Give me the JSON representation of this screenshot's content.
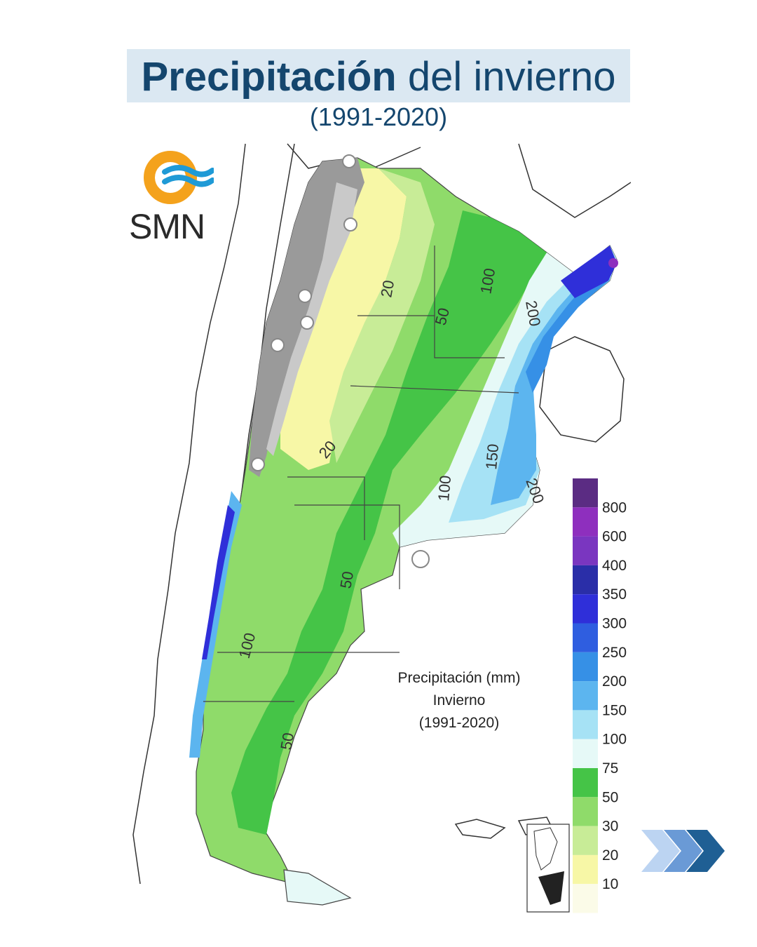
{
  "header": {
    "title_bold": "Precipitación",
    "title_rest": "del invierno",
    "subtitle": "(1991-2020)"
  },
  "logo": {
    "text": "SMN",
    "icon": "smn-logo-icon",
    "colors": {
      "ring": "#f4a21c",
      "waves": "#1f9ad6"
    }
  },
  "map": {
    "legend_title": [
      "Precipitación (mm)",
      "Invierno",
      "(1991-2020)"
    ],
    "contour_labels": [
      "20",
      "20",
      "50",
      "100",
      "200",
      "150",
      "100",
      "200",
      "50",
      "100",
      "50"
    ],
    "scale": [
      {
        "label": "800",
        "color": "#5b2c83"
      },
      {
        "label": "600",
        "color": "#8e2fbe"
      },
      {
        "label": "400",
        "color": "#7a36c0"
      },
      {
        "label": "350",
        "color": "#2a2ea8"
      },
      {
        "label": "300",
        "color": "#2f2fd9"
      },
      {
        "label": "250",
        "color": "#2f5ee0"
      },
      {
        "label": "200",
        "color": "#3690e6"
      },
      {
        "label": "150",
        "color": "#5cb5ef"
      },
      {
        "label": "100",
        "color": "#a6e2f5"
      },
      {
        "label": "75",
        "color": "#e6f9f7"
      },
      {
        "label": "50",
        "color": "#45c447"
      },
      {
        "label": "30",
        "color": "#8fdb6a"
      },
      {
        "label": "20",
        "color": "#c8ec97"
      },
      {
        "label": "10",
        "color": "#f7f7a6"
      },
      {
        "label": "",
        "color": "#fbfbe8"
      }
    ]
  },
  "nav": {
    "next_icon": "chevron-right-icon",
    "colors": [
      "#bcd4f2",
      "#6a9ad6",
      "#1f5f94"
    ]
  }
}
